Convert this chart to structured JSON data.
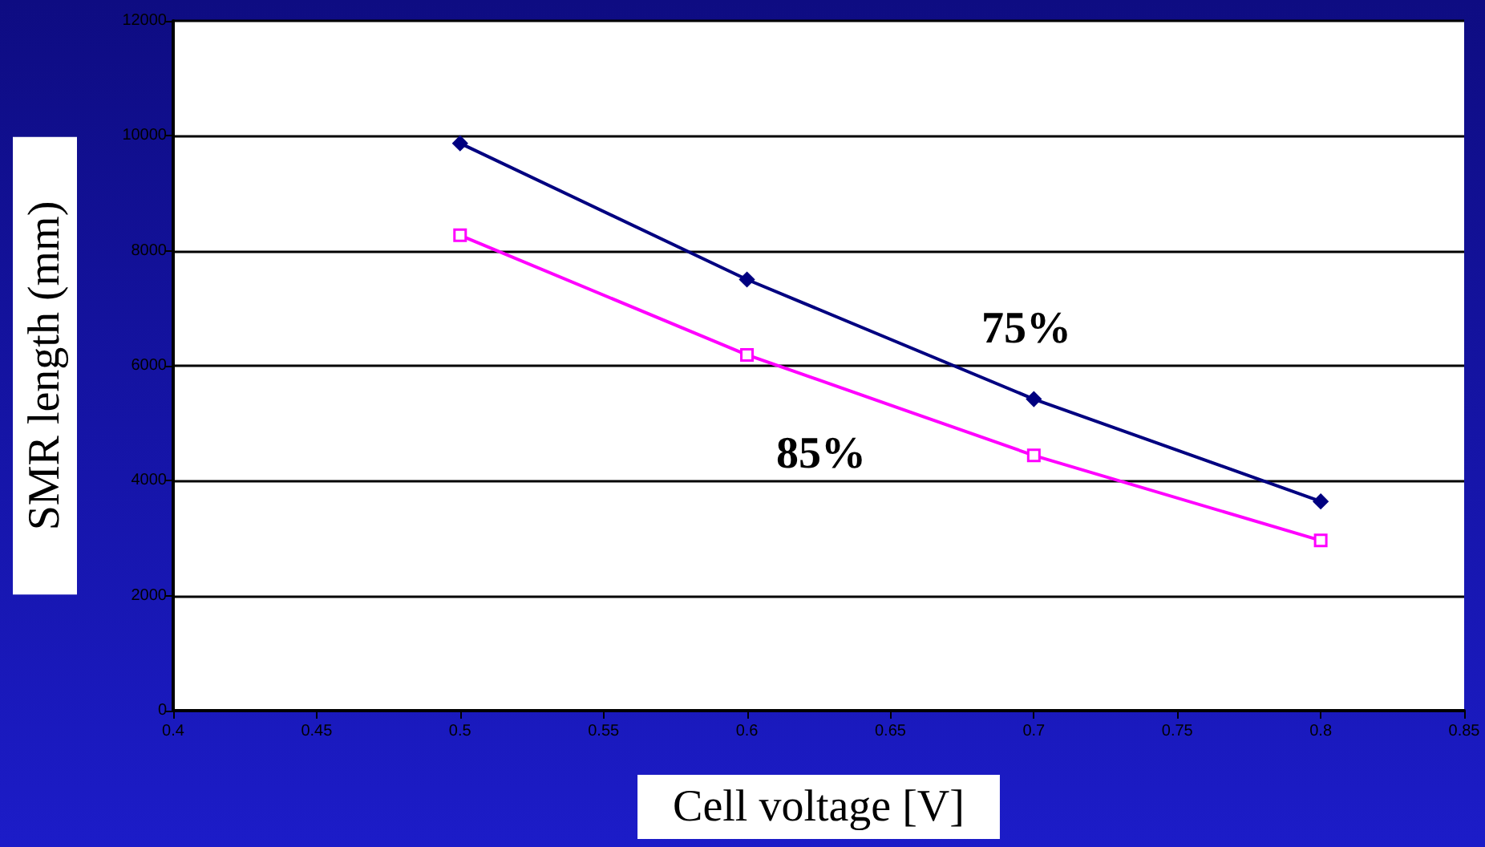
{
  "chart_data": {
    "type": "line",
    "xlabel": "Cell voltage [V]",
    "ylabel": "SMR length (mm)",
    "x": [
      0.5,
      0.6,
      0.7,
      0.8
    ],
    "series": [
      {
        "color": "#000080",
        "marker": "diamond",
        "values": [
          9870,
          7500,
          5420,
          3640
        ]
      },
      {
        "color": "#ff00ff",
        "marker": "square",
        "values": [
          8270,
          6190,
          4440,
          2960
        ]
      }
    ],
    "xlim": [
      0.4,
      0.85
    ],
    "xticks": [
      0.4,
      0.45,
      0.5,
      0.55,
      0.6,
      0.65,
      0.7,
      0.75,
      0.8,
      0.85
    ],
    "ylim": [
      0,
      12000
    ],
    "yticks": [
      0,
      2000,
      4000,
      6000,
      8000,
      10000,
      12000
    ],
    "grid": "y",
    "annotations": [
      "75%",
      "85%"
    ]
  }
}
